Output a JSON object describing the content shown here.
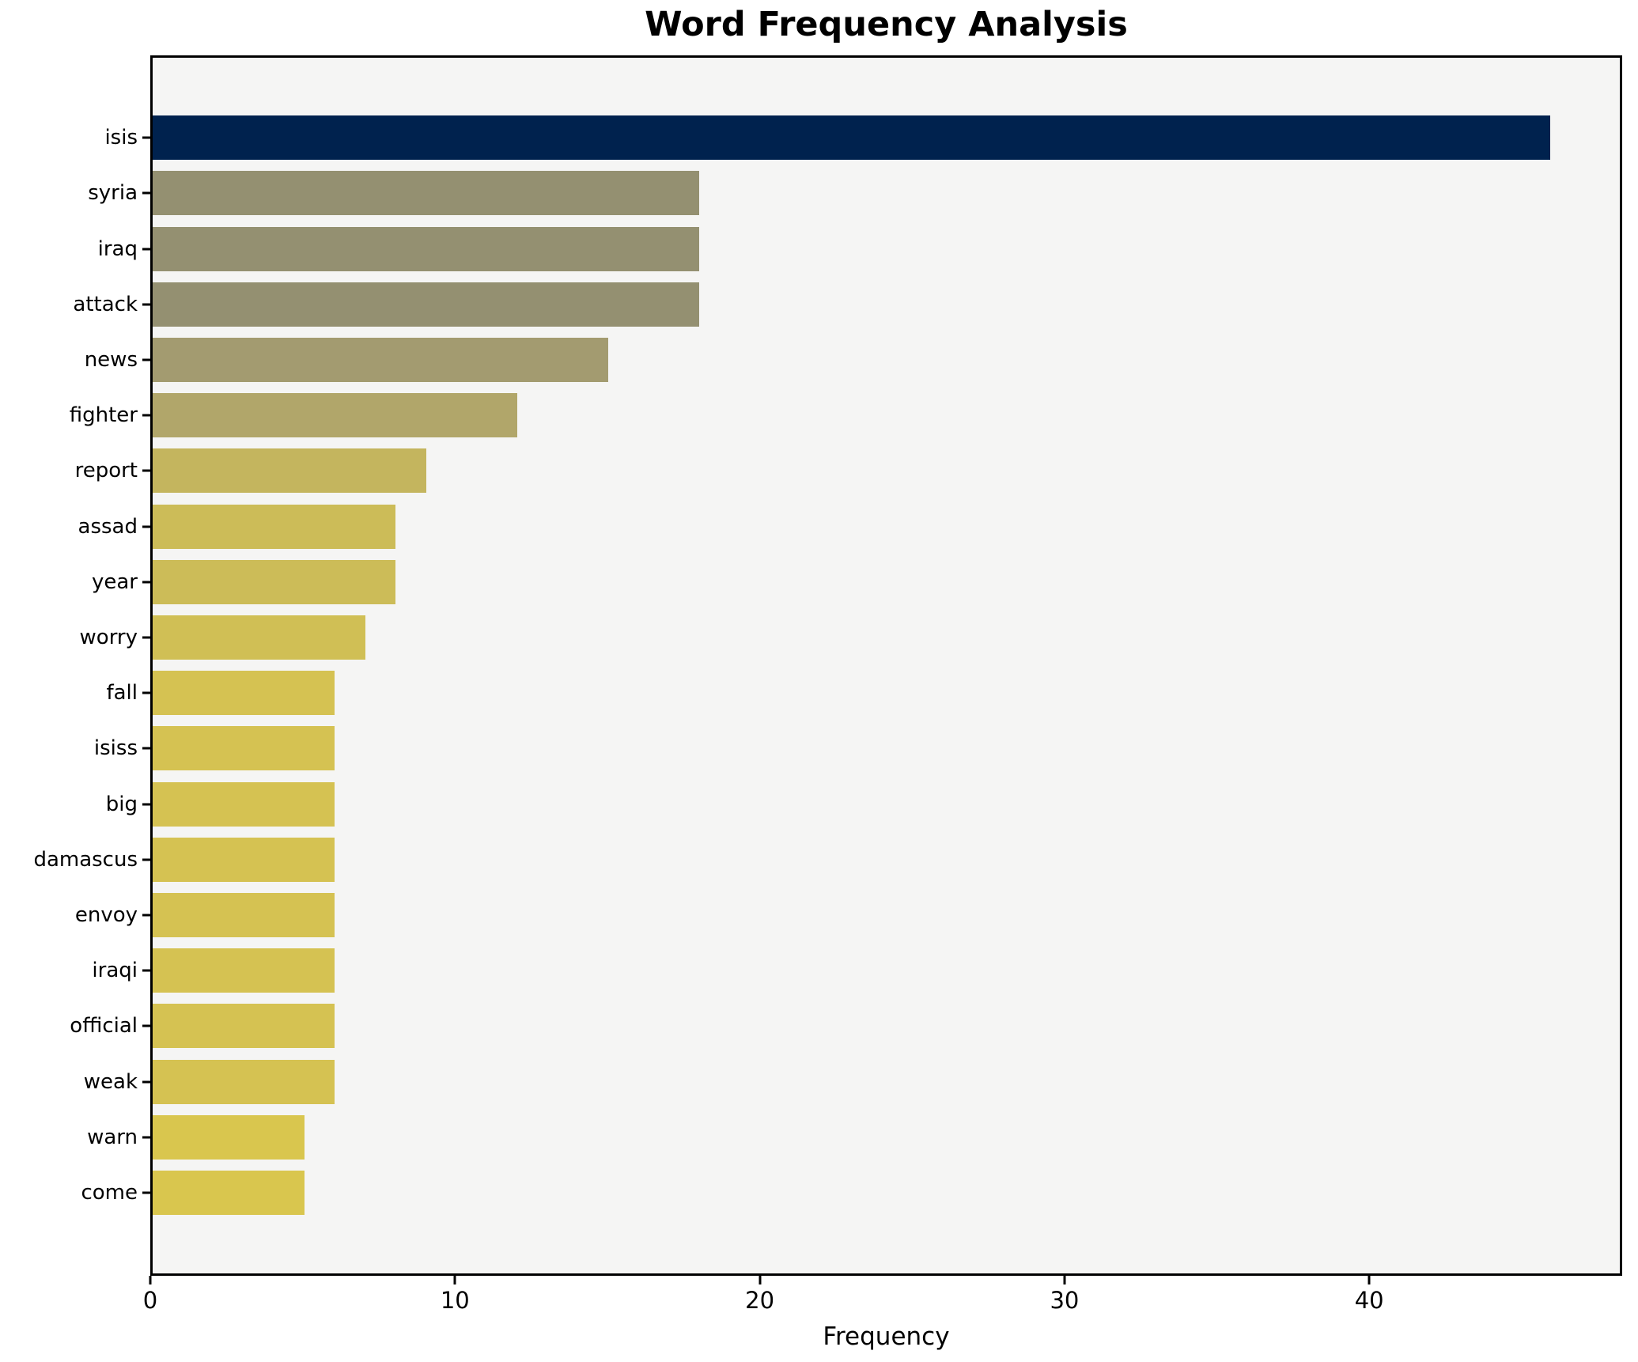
{
  "title": "Word Frequency Analysis",
  "chart_data": {
    "type": "bar",
    "orientation": "horizontal",
    "title": "Word Frequency Analysis",
    "xlabel": "Frequency",
    "ylabel": "",
    "xlim": [
      0,
      48.3
    ],
    "x_ticks": [
      "0",
      "10",
      "20",
      "30",
      "40"
    ],
    "x_tick_values": [
      0,
      10,
      20,
      30,
      40
    ],
    "grid": false,
    "legend": "none",
    "plot_background": "#f5f5f4",
    "figure_background": "#ffffff",
    "spine_color": "#000000",
    "categories": [
      "isis",
      "syria",
      "iraq",
      "attack",
      "news",
      "fighter",
      "report",
      "assad",
      "year",
      "worry",
      "fall",
      "isiss",
      "big",
      "damascus",
      "envoy",
      "iraqi",
      "official",
      "weak",
      "warn",
      "come"
    ],
    "values": [
      46,
      18,
      18,
      18,
      15,
      12,
      9,
      8,
      8,
      7,
      6,
      6,
      6,
      6,
      6,
      6,
      6,
      6,
      5,
      5
    ],
    "bar_colors": [
      "#00224e",
      "#949071",
      "#949071",
      "#949071",
      "#a39b70",
      "#b1a66a",
      "#c4b55e",
      "#ccbc58",
      "#ccbc58",
      "#d0bf55",
      "#d5c252",
      "#d5c252",
      "#d5c252",
      "#d5c252",
      "#d5c252",
      "#d5c252",
      "#d5c252",
      "#d5c252",
      "#d9c64e",
      "#d9c64e"
    ]
  }
}
